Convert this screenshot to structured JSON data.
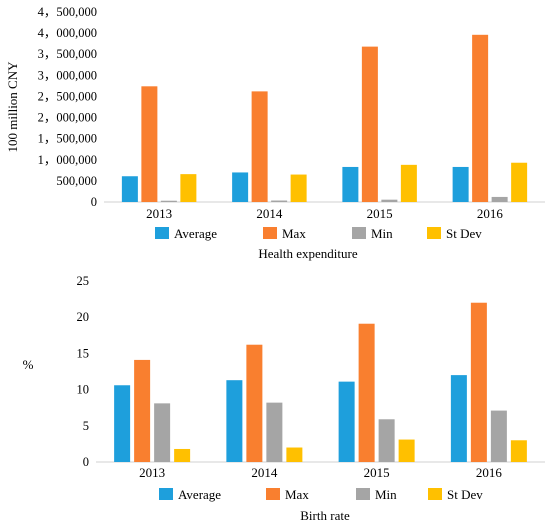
{
  "chart_data": [
    {
      "type": "bar",
      "title": "",
      "xlabel": "Health expenditure",
      "ylabel": "100 million CNY",
      "categories": [
        "2013",
        "2014",
        "2015",
        "2016"
      ],
      "ylim": [
        0,
        4500000
      ],
      "yticks": [
        0,
        500000,
        1000000,
        1500000,
        2000000,
        2500000,
        3000000,
        3500000,
        4000000,
        4500000
      ],
      "ytick_labels": [
        "0",
        "500,000",
        "1，000,000",
        "1，500,000",
        "2，000,000",
        "2，500,000",
        "3，000,000",
        "3，500,000",
        "4，000,000",
        "4，500,000"
      ],
      "series": [
        {
          "name": "Average",
          "color": "#1E9FDC",
          "values": [
            610000,
            700000,
            830000,
            830000
          ]
        },
        {
          "name": "Max",
          "color": "#F97F2F",
          "values": [
            2740000,
            2620000,
            3680000,
            3960000
          ]
        },
        {
          "name": "Min",
          "color": "#A5A5A5",
          "values": [
            30000,
            35000,
            55000,
            120000
          ]
        },
        {
          "name": "St Dev",
          "color": "#FFC000",
          "values": [
            660000,
            650000,
            880000,
            930000
          ]
        }
      ],
      "grid": false,
      "legend": "bottom"
    },
    {
      "type": "bar",
      "title": "",
      "xlabel": "Birth  rate",
      "ylabel": "%",
      "categories": [
        "2013",
        "2014",
        "2015",
        "2016"
      ],
      "ylim": [
        0,
        25
      ],
      "yticks": [
        0,
        5,
        10,
        15,
        20,
        25
      ],
      "ytick_labels": [
        "0",
        "5",
        "10",
        "15",
        "20",
        "25"
      ],
      "series": [
        {
          "name": "Average",
          "color": "#1E9FDC",
          "values": [
            10.6,
            11.3,
            11.1,
            12.0
          ]
        },
        {
          "name": "Max",
          "color": "#F97F2F",
          "values": [
            14.1,
            16.2,
            19.1,
            22.0
          ]
        },
        {
          "name": "Min",
          "color": "#A5A5A5",
          "values": [
            8.1,
            8.2,
            5.9,
            7.1
          ]
        },
        {
          "name": "St Dev",
          "color": "#FFC000",
          "values": [
            1.8,
            2.0,
            3.1,
            3.0
          ]
        }
      ],
      "grid": false,
      "legend": "bottom"
    }
  ]
}
